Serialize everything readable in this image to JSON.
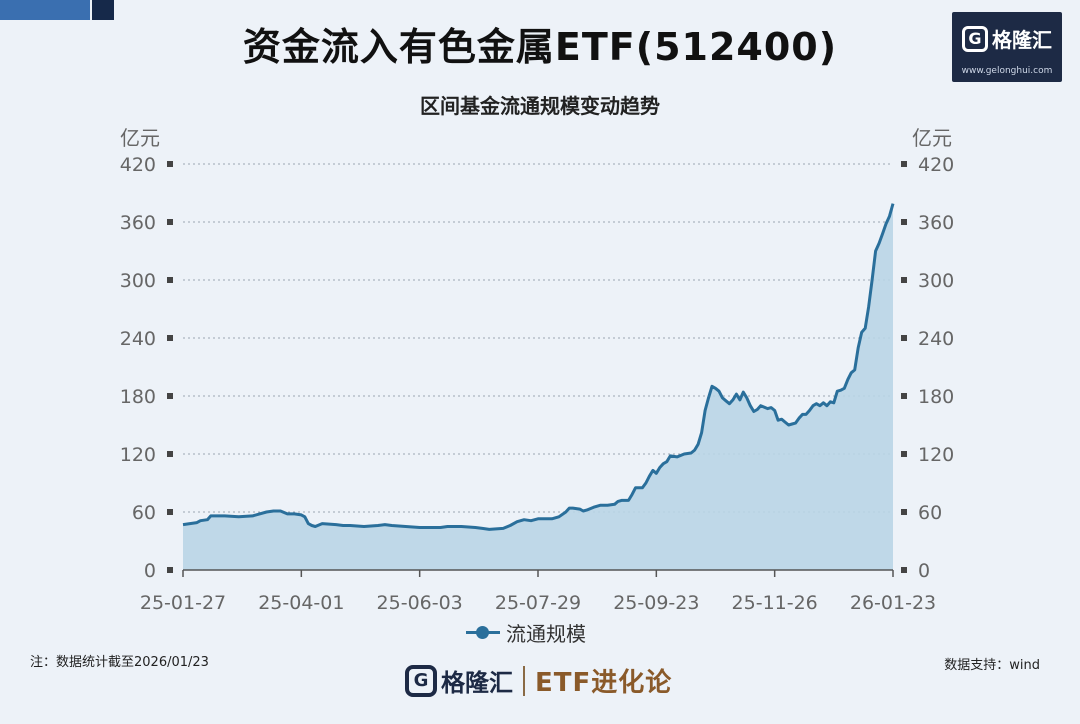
{
  "header": {
    "title": "资金流入有色金属ETF(512400)"
  },
  "logo": {
    "glyph": "G",
    "name": "格隆汇",
    "url": "www.gelonghui.com"
  },
  "chart_data": {
    "type": "area",
    "subtitle": "区间基金流通规模变动趋势",
    "y_unit_left": "亿元",
    "y_unit_right": "亿元",
    "yticks": [
      0,
      60,
      120,
      180,
      240,
      300,
      360,
      420
    ],
    "ylim": [
      0,
      420
    ],
    "xtick_labels": [
      "25-01-27",
      "25-04-01",
      "25-06-03",
      "25-07-29",
      "25-09-23",
      "25-11-26",
      "26-01-23"
    ],
    "grid": true,
    "legend_position": "bottom",
    "color": "#2a6f9b",
    "fill_color": "#b9d5e6",
    "series": [
      {
        "name": "流通规模",
        "points": [
          [
            0,
            47
          ],
          [
            0.02,
            49
          ],
          [
            0.025,
            51
          ],
          [
            0.035,
            52
          ],
          [
            0.04,
            56
          ],
          [
            0.06,
            56
          ],
          [
            0.08,
            55
          ],
          [
            0.1,
            56
          ],
          [
            0.11,
            58
          ],
          [
            0.12,
            60
          ],
          [
            0.13,
            61
          ],
          [
            0.14,
            61
          ],
          [
            0.15,
            58
          ],
          [
            0.16,
            58
          ],
          [
            0.17,
            57
          ],
          [
            0.175,
            55
          ],
          [
            0.18,
            48
          ],
          [
            0.185,
            46
          ],
          [
            0.19,
            45
          ],
          [
            0.2,
            48
          ],
          [
            0.22,
            47
          ],
          [
            0.23,
            46
          ],
          [
            0.24,
            46
          ],
          [
            0.26,
            45
          ],
          [
            0.28,
            46
          ],
          [
            0.29,
            47
          ],
          [
            0.3,
            46
          ],
          [
            0.32,
            45
          ],
          [
            0.34,
            44
          ],
          [
            0.36,
            44
          ],
          [
            0.37,
            44
          ],
          [
            0.38,
            45
          ],
          [
            0.4,
            45
          ],
          [
            0.42,
            44
          ],
          [
            0.43,
            43
          ],
          [
            0.44,
            42
          ],
          [
            0.46,
            43
          ],
          [
            0.47,
            46
          ],
          [
            0.48,
            50
          ],
          [
            0.49,
            52
          ],
          [
            0.5,
            51
          ],
          [
            0.51,
            53
          ],
          [
            0.52,
            53
          ],
          [
            0.53,
            53
          ],
          [
            0.54,
            55
          ],
          [
            0.55,
            60
          ],
          [
            0.555,
            64
          ],
          [
            0.56,
            64
          ],
          [
            0.57,
            63
          ],
          [
            0.575,
            61
          ],
          [
            0.58,
            62
          ],
          [
            0.59,
            65
          ],
          [
            0.6,
            67
          ],
          [
            0.61,
            67
          ],
          [
            0.62,
            68
          ],
          [
            0.625,
            71
          ],
          [
            0.63,
            72
          ],
          [
            0.64,
            72
          ],
          [
            0.645,
            78
          ],
          [
            0.65,
            85
          ],
          [
            0.66,
            85
          ],
          [
            0.665,
            90
          ],
          [
            0.67,
            97
          ],
          [
            0.675,
            103
          ],
          [
            0.68,
            100
          ],
          [
            0.685,
            106
          ],
          [
            0.69,
            110
          ],
          [
            0.695,
            112
          ],
          [
            0.7,
            118
          ],
          [
            0.71,
            117
          ],
          [
            0.72,
            120
          ],
          [
            0.73,
            121
          ],
          [
            0.735,
            124
          ],
          [
            0.74,
            130
          ],
          [
            0.745,
            142
          ],
          [
            0.75,
            165
          ],
          [
            0.755,
            178
          ],
          [
            0.76,
            190
          ],
          [
            0.765,
            188
          ],
          [
            0.77,
            185
          ],
          [
            0.775,
            178
          ],
          [
            0.78,
            175
          ],
          [
            0.785,
            172
          ],
          [
            0.79,
            176
          ],
          [
            0.795,
            182
          ],
          [
            0.8,
            176
          ],
          [
            0.805,
            184
          ],
          [
            0.81,
            178
          ],
          [
            0.815,
            170
          ],
          [
            0.82,
            164
          ],
          [
            0.825,
            166
          ],
          [
            0.83,
            170
          ],
          [
            0.84,
            167
          ],
          [
            0.845,
            168
          ],
          [
            0.85,
            165
          ],
          [
            0.855,
            155
          ],
          [
            0.86,
            156
          ],
          [
            0.865,
            153
          ],
          [
            0.87,
            150
          ],
          [
            0.875,
            151
          ],
          [
            0.88,
            152
          ],
          [
            0.885,
            157
          ],
          [
            0.89,
            161
          ],
          [
            0.895,
            161
          ],
          [
            0.9,
            165
          ],
          [
            0.905,
            170
          ],
          [
            0.91,
            172
          ],
          [
            0.915,
            170
          ],
          [
            0.92,
            173
          ],
          [
            0.925,
            170
          ],
          [
            0.93,
            174
          ],
          [
            0.935,
            173
          ],
          [
            0.94,
            185
          ],
          [
            0.945,
            186
          ],
          [
            0.95,
            188
          ],
          [
            0.955,
            197
          ],
          [
            0.96,
            204
          ],
          [
            0.965,
            207
          ],
          [
            0.97,
            230
          ],
          [
            0.975,
            246
          ],
          [
            0.98,
            250
          ],
          [
            0.985,
            272
          ],
          [
            0.99,
            300
          ],
          [
            0.995,
            330
          ],
          [
            1.0,
            338
          ],
          [
            1.005,
            348
          ],
          [
            1.01,
            358
          ],
          [
            1.015,
            366
          ],
          [
            1.02,
            379
          ]
        ]
      }
    ]
  },
  "footnote": "注：数据统计截至2026/01/23",
  "source": "数据支持：wind",
  "footer": {
    "logo_glyph": "G",
    "brand": "格隆汇",
    "tagline": "ETF进化论"
  }
}
